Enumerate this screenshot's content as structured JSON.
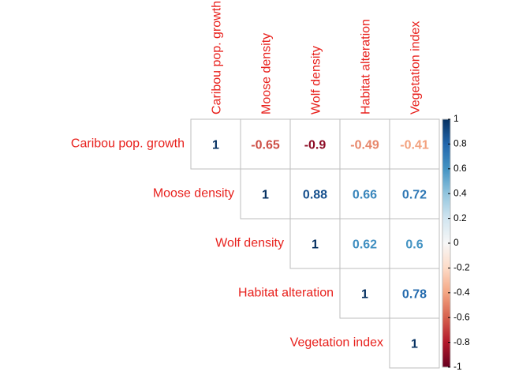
{
  "chart_data": {
    "type": "heatmap",
    "variant": "upper-triangle correlation matrix",
    "variables": [
      "Caribou pop. growth",
      "Moose density",
      "Wolf density",
      "Habitat alteration",
      "Vegetation index"
    ],
    "matrix": [
      [
        1,
        -0.65,
        -0.9,
        -0.49,
        -0.41
      ],
      [
        null,
        1,
        0.88,
        0.66,
        0.72
      ],
      [
        null,
        null,
        1,
        0.62,
        0.6
      ],
      [
        null,
        null,
        null,
        1,
        0.78
      ],
      [
        null,
        null,
        null,
        null,
        1
      ]
    ],
    "colorbar": {
      "range": [
        -1,
        1
      ],
      "ticks": [
        "1",
        "0.8",
        "0.6",
        "0.4",
        "0.2",
        "0",
        "-0.2",
        "-0.4",
        "-0.6",
        "-0.8",
        "-1"
      ],
      "placement": "right"
    },
    "label_color": "#e8211d",
    "grid": true
  }
}
